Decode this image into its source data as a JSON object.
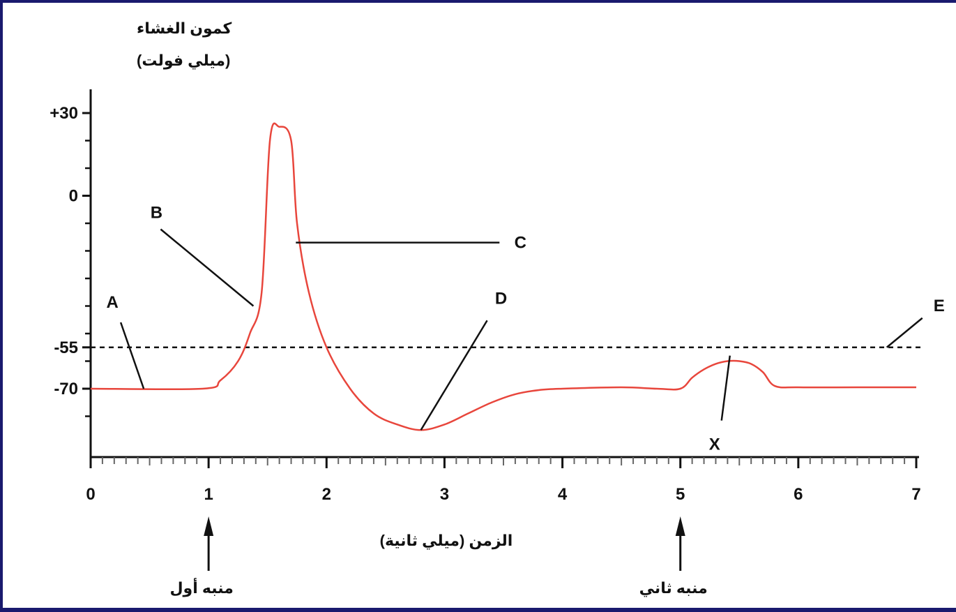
{
  "chart_data": {
    "type": "line",
    "ylabel_line1": "كمون الغشاء",
    "ylabel_line2": "(ميلي فولت)",
    "xlabel": "الزمن (ميلي ثانية)",
    "xlim": [
      0,
      7
    ],
    "ylim": [
      -90,
      40
    ],
    "x_ticks": [
      "0",
      "1",
      "2",
      "3",
      "4",
      "5",
      "6",
      "7"
    ],
    "x_tick_values": [
      0,
      1,
      2,
      3,
      4,
      5,
      6,
      7
    ],
    "y_ticks": [
      "+30",
      "0",
      "-55",
      "-70"
    ],
    "y_tick_values": [
      30,
      0,
      -55,
      -70
    ],
    "threshold": -55,
    "series": [
      {
        "color": "#e8463c",
        "x": [
          0,
          0.95,
          1.1,
          1.25,
          1.35,
          1.45,
          1.52,
          1.6,
          1.7,
          1.75,
          1.85,
          2.0,
          2.2,
          2.4,
          2.6,
          2.8,
          3.0,
          3.2,
          3.4,
          3.6,
          3.8,
          4.0,
          4.5,
          4.8,
          5.0,
          5.1,
          5.2,
          5.3,
          5.4,
          5.5,
          5.6,
          5.7,
          5.8,
          6.0,
          6.5,
          7.0
        ],
        "y": [
          -70,
          -70,
          -67,
          -60,
          -50,
          -35,
          20,
          25,
          20,
          -10,
          -35,
          -55,
          -70,
          -79,
          -83,
          -85,
          -83,
          -79,
          -75,
          -72,
          -70.5,
          -70,
          -69.5,
          -70,
          -70,
          -66,
          -63,
          -61,
          -60,
          -60,
          -61,
          -64,
          -69,
          -69.5,
          -69.5,
          -69.5
        ]
      }
    ],
    "annotations": [
      {
        "label": "A",
        "x": 0.45,
        "y": -70
      },
      {
        "label": "B",
        "x": 1.38,
        "y": -40
      },
      {
        "label": "C",
        "x": 1.74,
        "y": -17
      },
      {
        "label": "D",
        "x": 2.8,
        "y": -85
      },
      {
        "label": "E",
        "x": 6.75,
        "y": -55
      },
      {
        "label": "X",
        "x": 5.42,
        "y": -58
      }
    ],
    "stimuli": [
      {
        "label": "منبه أول",
        "x": 1
      },
      {
        "label": "منبه ثاني",
        "x": 5
      }
    ]
  },
  "colors": {
    "curve": "#e8463c",
    "axis": "#111111",
    "frame": "#1a1a6e"
  }
}
